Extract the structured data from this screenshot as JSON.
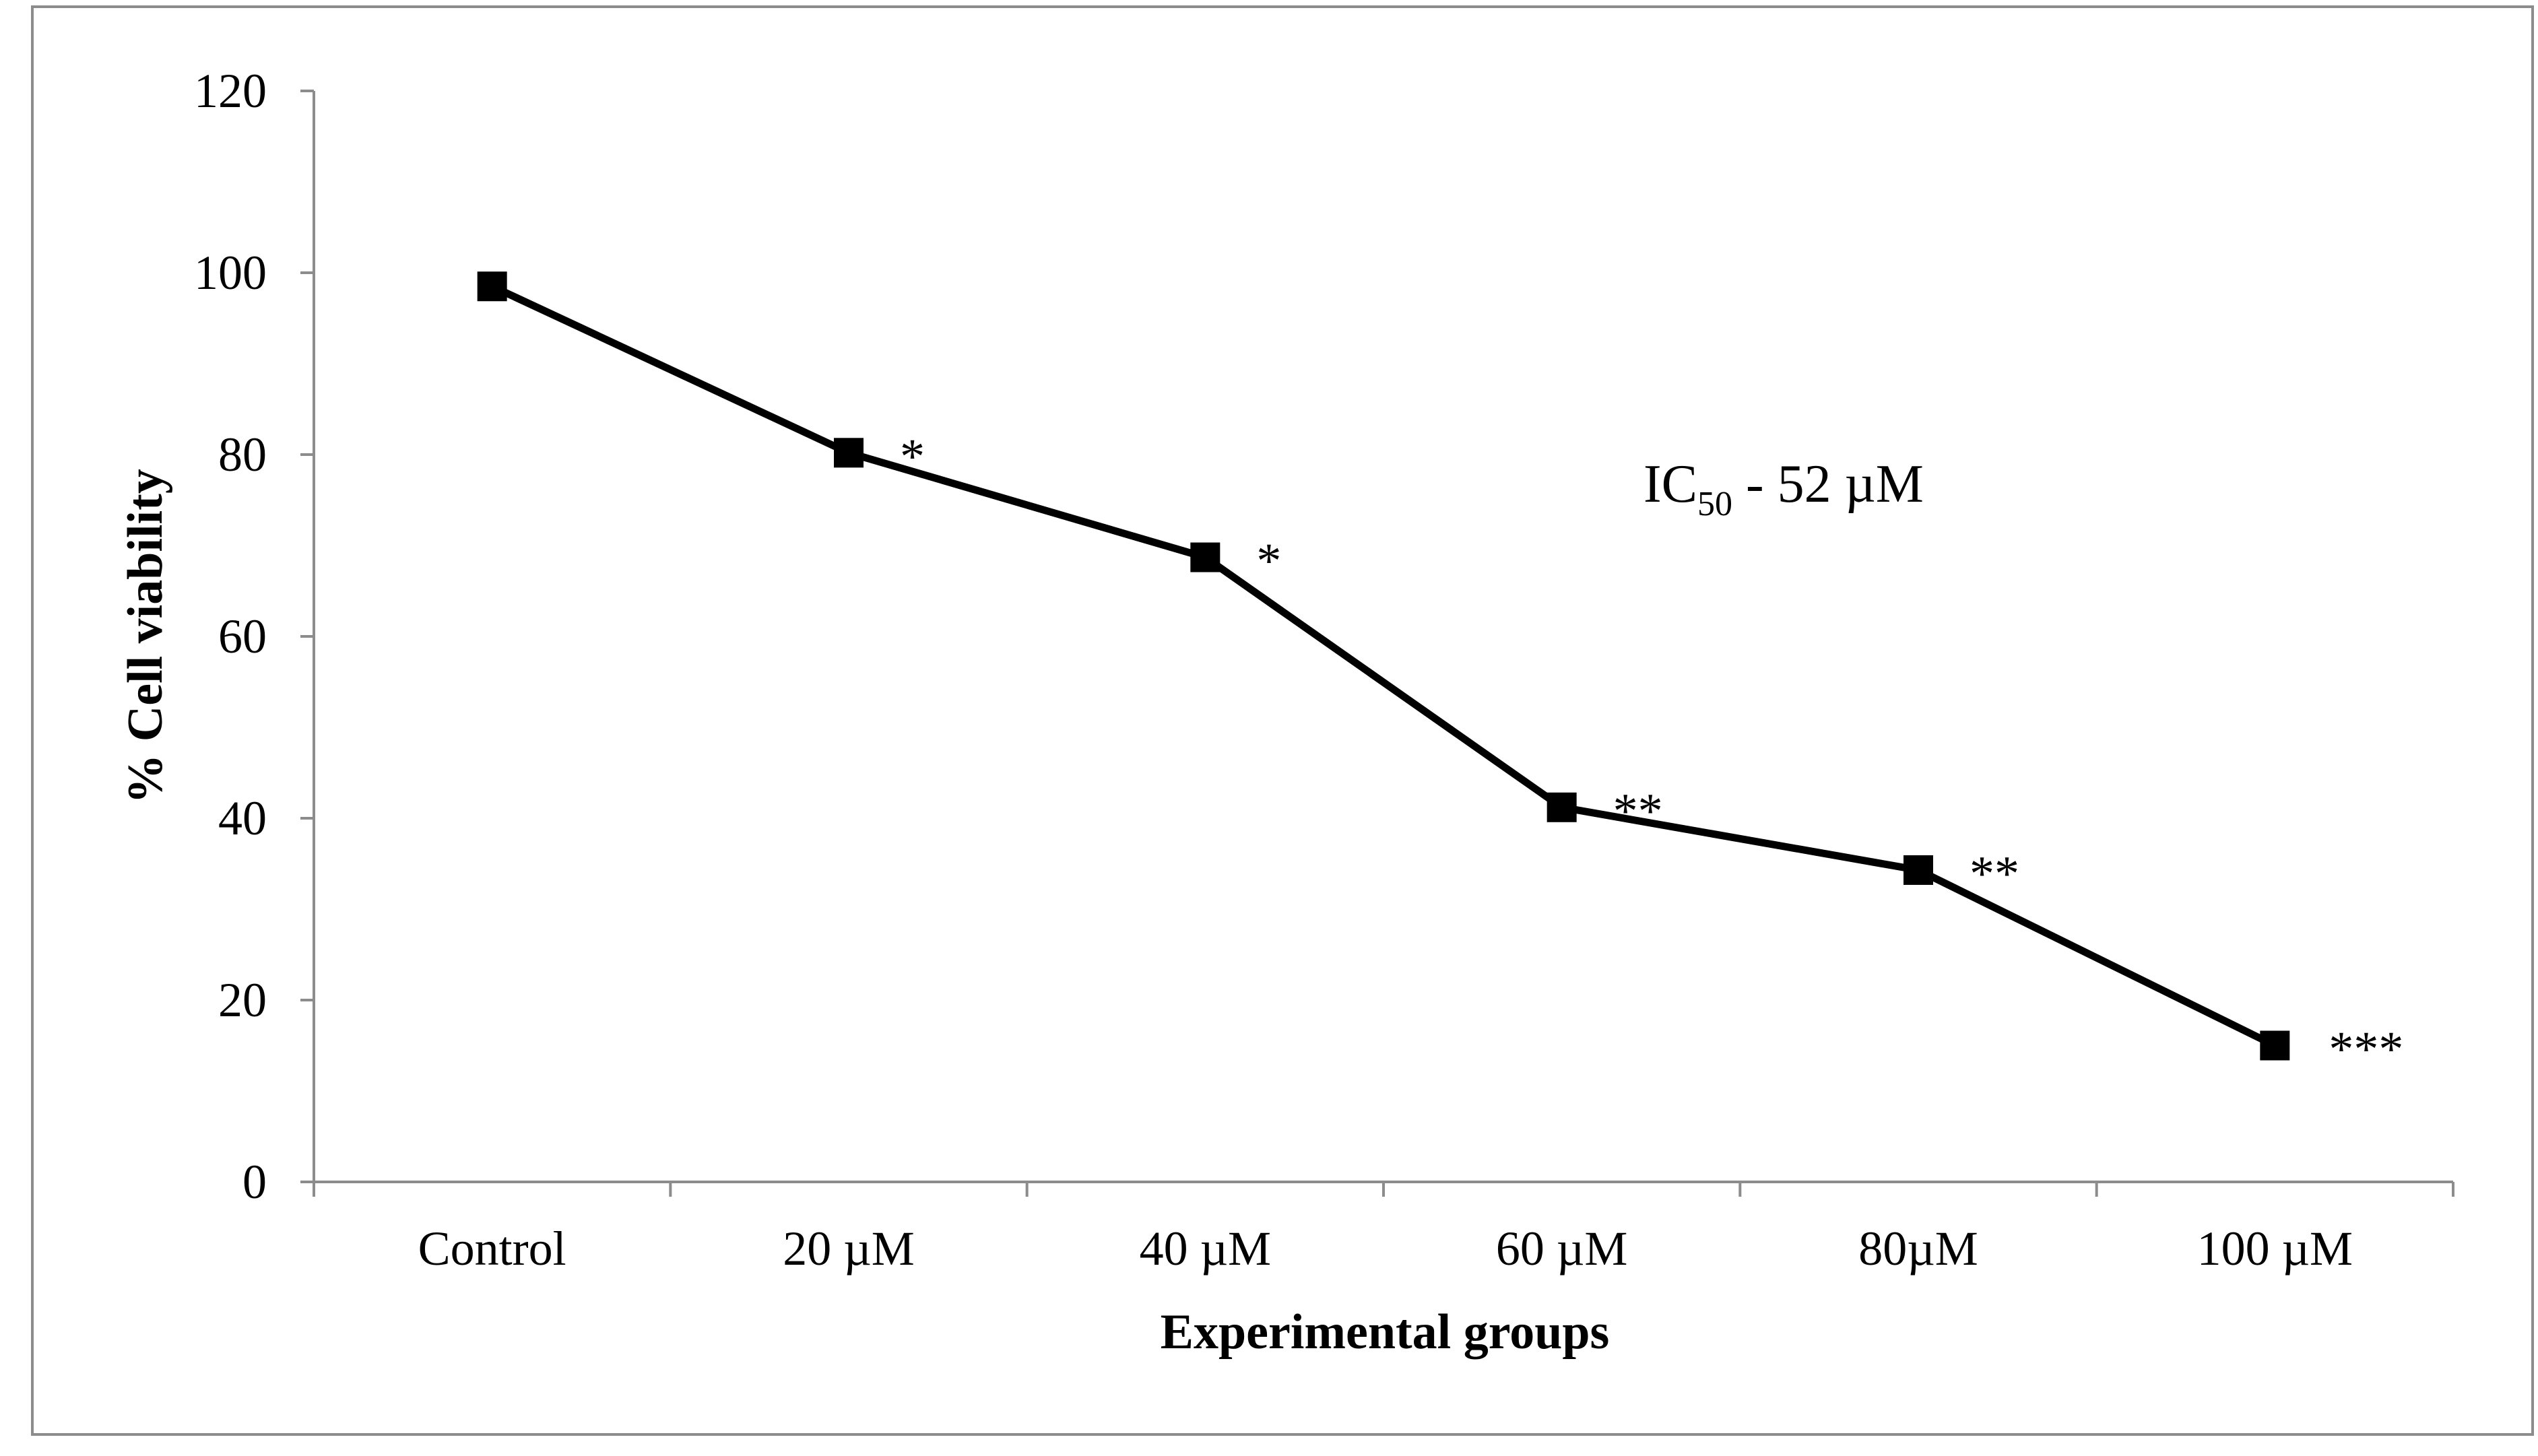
{
  "chart_data": {
    "type": "line",
    "title": "",
    "xlabel": "Experimental groups",
    "ylabel": "% Cell viability",
    "categories": [
      "Control",
      "20 µM",
      "40 µM",
      "60 µM",
      "80µM",
      "100 µM"
    ],
    "series": [
      {
        "name": "% Cell viability",
        "values": [
          98.5,
          80.2,
          68.7,
          41.2,
          34.3,
          15.0
        ],
        "significance": [
          "",
          "*",
          "*",
          "**",
          "**",
          "***"
        ]
      }
    ],
    "ylim": [
      0,
      120
    ],
    "yticks": [
      "0",
      "20",
      "40",
      "60",
      "80",
      "100",
      "120"
    ],
    "grid": false,
    "legend": "none",
    "annotation": {
      "prefix": "IC",
      "subscript": "50",
      "suffix": " - 52 µM"
    },
    "colors": {
      "line": "#000000",
      "axis": "#8c8c8c",
      "background": "#ffffff"
    }
  }
}
